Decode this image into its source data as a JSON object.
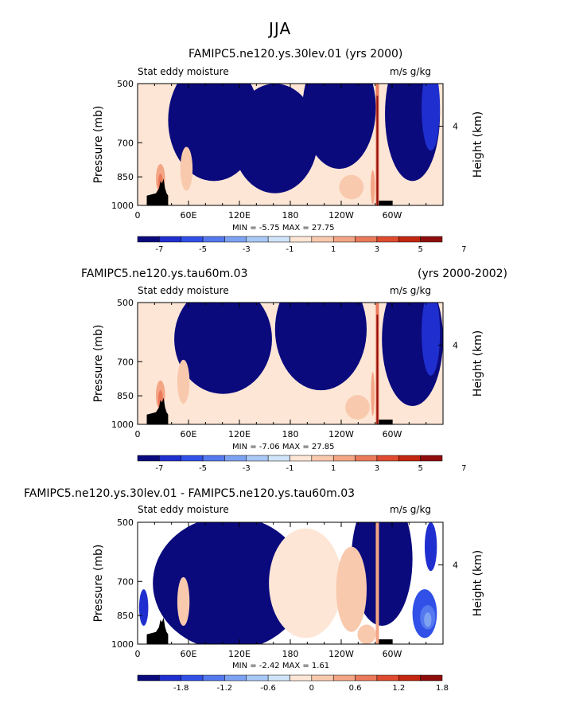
{
  "title": "JJA",
  "units_label": "m/s g/kg",
  "panel_left_label": "Stat eddy moisture",
  "ylabel_left": "Pressure (mb)",
  "ylabel_right": "Height (km)",
  "x_ticks": [
    "0",
    "60E",
    "120E",
    "180",
    "120W",
    "60W"
  ],
  "y_ticks": [
    "500",
    "700",
    "850",
    "1000"
  ],
  "right_tick": "4",
  "colors": {
    "neg": [
      "#0a0a7d",
      "#1f2fcf",
      "#3050e8",
      "#5478ee",
      "#7ea2f2",
      "#a8c8f6",
      "#d0e4f9"
    ],
    "pos": [
      "#fde6d6",
      "#f9c9ad",
      "#f3a585",
      "#ea7a5a",
      "#de4b2f",
      "#c2270f",
      "#8f0c0c"
    ]
  },
  "chart_data": [
    {
      "type": "heatmap",
      "title": "FAMIPC5.ne120.ys.30lev.01 (yrs 2000)",
      "stats": "MIN =   -5.75   MAX =   27.75",
      "colorbar_labels": [
        "-7",
        "-5",
        "-3",
        "-1",
        "1",
        "3",
        "5",
        "7"
      ],
      "xlim": [
        0,
        360
      ],
      "ylim_mb": [
        1000,
        500
      ]
    },
    {
      "type": "heatmap",
      "title": "FAMIPC5.ne120.ys.tau60m.03",
      "title_right": "(yrs 2000-2002)",
      "stats": "MIN =   -7.06   MAX =   27.85",
      "colorbar_labels": [
        "-7",
        "-5",
        "-3",
        "-1",
        "1",
        "3",
        "5",
        "7"
      ],
      "xlim": [
        0,
        360
      ],
      "ylim_mb": [
        1000,
        500
      ]
    },
    {
      "type": "heatmap",
      "title": "FAMIPC5.ne120.ys.30lev.01 - FAMIPC5.ne120.ys.tau60m.03",
      "stats": "MIN =   -2.42   MAX =    1.61",
      "colorbar_labels": [
        "-1.8",
        "-1.2",
        "-0.6",
        "0",
        "0.6",
        "1.2",
        "1.8"
      ],
      "xlim": [
        0,
        360
      ],
      "ylim_mb": [
        1000,
        500
      ]
    }
  ]
}
